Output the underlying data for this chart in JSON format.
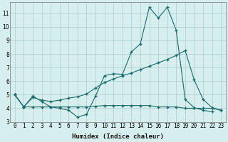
{
  "title": "",
  "xlabel": "Humidex (Indice chaleur)",
  "background_color": "#d6eeee",
  "grid_color": "#aacccc",
  "line_color": "#1a6b6b",
  "x_values": [
    0,
    1,
    2,
    3,
    4,
    5,
    6,
    7,
    8,
    9,
    10,
    11,
    12,
    13,
    14,
    15,
    16,
    17,
    18,
    19,
    20,
    21,
    22,
    23
  ],
  "line1": [
    5.0,
    4.1,
    4.9,
    4.5,
    4.1,
    4.0,
    3.85,
    3.35,
    3.55,
    4.9,
    6.4,
    6.55,
    6.5,
    8.15,
    8.75,
    11.45,
    10.65,
    11.45,
    9.75,
    4.65,
    4.05,
    3.85,
    3.75,
    null
  ],
  "line2": [
    5.0,
    4.1,
    4.8,
    4.6,
    4.5,
    4.6,
    4.75,
    4.85,
    5.05,
    5.5,
    5.9,
    6.15,
    6.4,
    6.6,
    6.85,
    7.1,
    7.35,
    7.6,
    7.9,
    8.25,
    6.1,
    4.65,
    4.05,
    3.85
  ],
  "line3": [
    5.0,
    4.1,
    4.1,
    4.1,
    4.1,
    4.1,
    4.1,
    4.1,
    4.1,
    4.15,
    4.2,
    4.2,
    4.2,
    4.2,
    4.2,
    4.2,
    4.1,
    4.1,
    4.1,
    4.0,
    4.0,
    4.0,
    4.0,
    3.85
  ],
  "ylim": [
    3.0,
    11.8
  ],
  "xlim": [
    -0.5,
    23.5
  ],
  "yticks": [
    3,
    4,
    5,
    6,
    7,
    8,
    9,
    10,
    11
  ],
  "xticks": [
    0,
    1,
    2,
    3,
    4,
    5,
    6,
    7,
    8,
    9,
    10,
    11,
    12,
    13,
    14,
    15,
    16,
    17,
    18,
    19,
    20,
    21,
    22,
    23
  ],
  "tick_fontsize": 5.5,
  "xlabel_fontsize": 6.5,
  "marker": "+",
  "markersize": 3.0,
  "linewidth": 0.8
}
